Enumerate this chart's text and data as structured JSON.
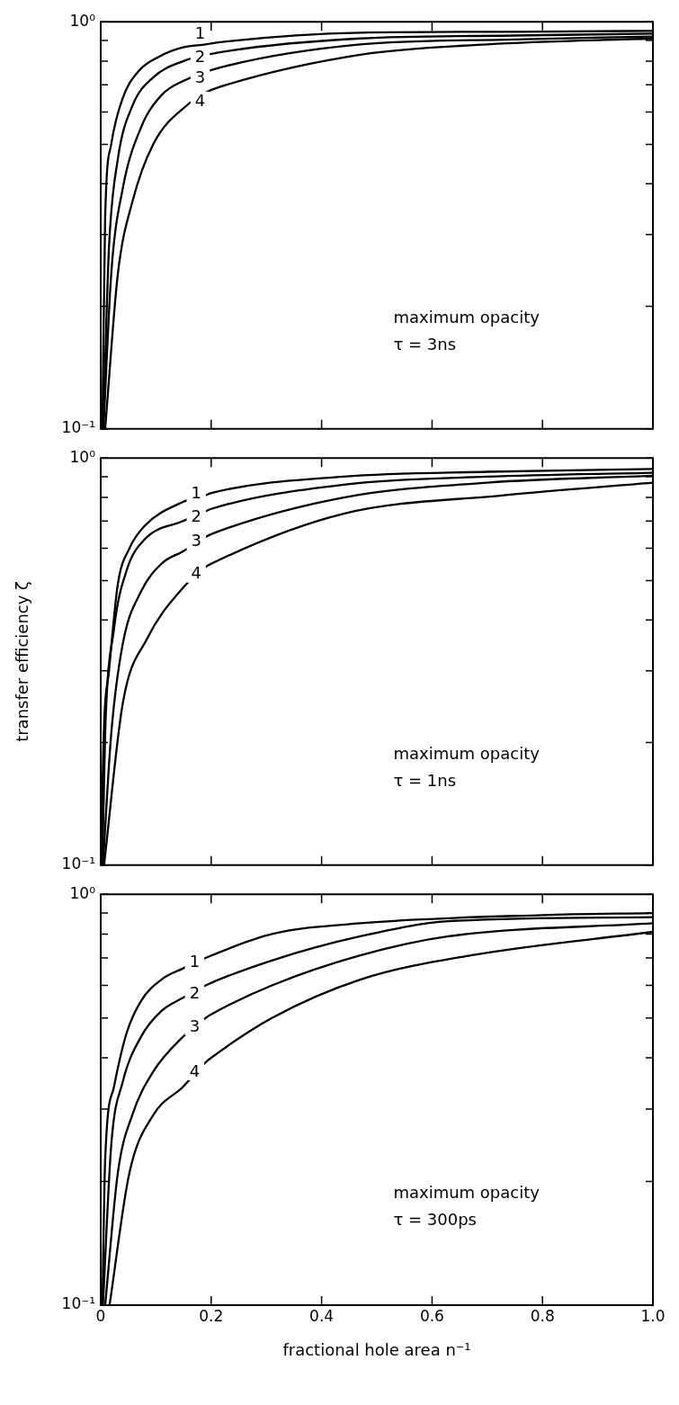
{
  "chart_data": [
    {
      "type": "line",
      "log": "y",
      "xlim": [
        0,
        1
      ],
      "ylim": [
        0.1,
        1
      ],
      "xticks": [
        0.2,
        0.4,
        0.6,
        0.8
      ],
      "yticks": [
        {
          "value": 0.1,
          "label": "10⁻¹"
        },
        {
          "value": 0.2,
          "label": null
        },
        {
          "value": 0.3,
          "label": null
        },
        {
          "value": 0.4,
          "label": null
        },
        {
          "value": 0.5,
          "label": null
        },
        {
          "value": 0.6,
          "label": null
        },
        {
          "value": 0.7,
          "label": null
        },
        {
          "value": 0.8,
          "label": null
        },
        {
          "value": 0.9,
          "label": null
        },
        {
          "value": 1,
          "label": "10⁰"
        }
      ],
      "tick_labels": "y",
      "grid": false,
      "marker": "none",
      "line_style": "solid",
      "annotations": [
        "maximum opacity",
        "τ = 3ns",
        {
          "text": "1",
          "x": 0.18,
          "y": 0.935
        },
        {
          "text": "2",
          "x": 0.18,
          "y": 0.82
        },
        {
          "text": "3",
          "x": 0.18,
          "y": 0.73
        },
        {
          "text": "4",
          "x": 0.18,
          "y": 0.64
        }
      ],
      "series": [
        {
          "color": "#000000",
          "x": [
            0.003,
            0.008,
            0.019,
            0.04,
            0.068,
            0.105,
            0.149,
            0.19,
            0.213,
            0.47,
            0.75,
            1
          ],
          "values": [
            0.1,
            0.33,
            0.5,
            0.65,
            0.755,
            0.82,
            0.865,
            0.88,
            0.89,
            0.94,
            0.945,
            0.95
          ]
        },
        {
          "color": "#000000",
          "x": [
            0.004,
            0.006,
            0.015,
            0.031,
            0.057,
            0.095,
            0.149,
            0.213,
            0.47,
            0.75,
            1
          ],
          "values": [
            0.1,
            0.12,
            0.28,
            0.46,
            0.62,
            0.73,
            0.8,
            0.84,
            0.91,
            0.925,
            0.935
          ]
        },
        {
          "color": "#000000",
          "x": [
            0.005,
            0.019,
            0.04,
            0.073,
            0.11,
            0.154,
            0.213,
            0.47,
            0.75,
            1
          ],
          "values": [
            0.1,
            0.24,
            0.39,
            0.55,
            0.66,
            0.72,
            0.77,
            0.88,
            0.905,
            0.92
          ]
        },
        {
          "color": "#000000",
          "x": [
            0.008,
            0.031,
            0.057,
            0.095,
            0.16,
            0.19,
            0.213,
            0.47,
            0.7,
            1
          ],
          "values": [
            0.1,
            0.24,
            0.36,
            0.5,
            0.63,
            0.67,
            0.69,
            0.83,
            0.88,
            0.91
          ]
        }
      ]
    },
    {
      "type": "line",
      "log": "y",
      "xlim": [
        0,
        1
      ],
      "ylim": [
        0.1,
        1
      ],
      "xticks": [
        0.2,
        0.4,
        0.6,
        0.8
      ],
      "yticks": [
        {
          "value": 0.1,
          "label": "10⁻¹"
        },
        {
          "value": 0.2,
          "label": null
        },
        {
          "value": 0.3,
          "label": null
        },
        {
          "value": 0.4,
          "label": null
        },
        {
          "value": 0.5,
          "label": null
        },
        {
          "value": 0.6,
          "label": null
        },
        {
          "value": 0.7,
          "label": null
        },
        {
          "value": 0.8,
          "label": null
        },
        {
          "value": 0.9,
          "label": null
        },
        {
          "value": 1,
          "label": "10⁰"
        }
      ],
      "tick_labels": "y",
      "grid": false,
      "marker": "none",
      "line_style": "solid",
      "ylabel": "transfer efficiency ζ",
      "annotations": [
        "maximum opacity",
        "τ = 1ns",
        {
          "text": "1",
          "x": 0.173,
          "y": 0.818
        },
        {
          "text": "2",
          "x": 0.173,
          "y": 0.718
        },
        {
          "text": "3",
          "x": 0.173,
          "y": 0.627
        },
        {
          "text": "4",
          "x": 0.173,
          "y": 0.52
        }
      ],
      "series": [
        {
          "color": "#000000",
          "x": [
            0.002,
            0.003,
            0.015,
            0.031,
            0.052,
            0.079,
            0.149,
            0.19,
            0.2,
            0.44,
            0.7,
            1
          ],
          "values": [
            0.1,
            0.15,
            0.3,
            0.49,
            0.6,
            0.68,
            0.78,
            0.81,
            0.82,
            0.9,
            0.925,
            0.94
          ]
        },
        {
          "color": "#000000",
          "x": [
            0.003,
            0.008,
            0.024,
            0.047,
            0.079,
            0.149,
            0.19,
            0.2,
            0.44,
            0.7,
            1
          ],
          "values": [
            0.1,
            0.21,
            0.38,
            0.53,
            0.63,
            0.7,
            0.74,
            0.75,
            0.86,
            0.9,
            0.92
          ]
        },
        {
          "color": "#000000",
          "x": [
            0.004,
            0.019,
            0.04,
            0.073,
            0.11,
            0.149,
            0.19,
            0.2,
            0.44,
            0.7,
            1
          ],
          "values": [
            0.1,
            0.21,
            0.35,
            0.47,
            0.55,
            0.59,
            0.64,
            0.65,
            0.8,
            0.87,
            0.905
          ]
        },
        {
          "color": "#000000",
          "x": [
            0.006,
            0.04,
            0.084,
            0.149,
            0.19,
            0.2,
            0.44,
            0.73,
            1
          ],
          "values": [
            0.1,
            0.25,
            0.36,
            0.48,
            0.54,
            0.55,
            0.73,
            0.81,
            0.87
          ]
        }
      ]
    },
    {
      "type": "line",
      "log": "y",
      "xlim": [
        0,
        1
      ],
      "ylim": [
        0.1,
        1
      ],
      "xticks": [
        0,
        0.2,
        0.4,
        0.6,
        0.8,
        {
          "value": 1,
          "label": "1.0"
        }
      ],
      "yticks": [
        {
          "value": 0.1,
          "label": "10⁻¹"
        },
        {
          "value": 0.2,
          "label": null
        },
        {
          "value": 0.3,
          "label": null
        },
        {
          "value": 0.4,
          "label": null
        },
        {
          "value": 0.5,
          "label": null
        },
        {
          "value": 0.6,
          "label": null
        },
        {
          "value": 0.7,
          "label": null
        },
        {
          "value": 0.8,
          "label": null
        },
        {
          "value": 0.9,
          "label": null
        },
        {
          "value": 1,
          "label": "10⁰"
        }
      ],
      "grid": false,
      "marker": "none",
      "line_style": "solid",
      "xlabel": "fractional hole area n⁻¹",
      "annotations": [
        "maximum opacity",
        "τ = 300ps",
        {
          "text": "1",
          "x": 0.17,
          "y": 0.686
        },
        {
          "text": "2",
          "x": 0.17,
          "y": 0.575
        },
        {
          "text": "3",
          "x": 0.17,
          "y": 0.477
        },
        {
          "text": "4",
          "x": 0.17,
          "y": 0.371
        }
      ],
      "series": [
        {
          "color": "#000000",
          "x": [
            0.003,
            0.008,
            0.024,
            0.047,
            0.073,
            0.11,
            0.149,
            0.19,
            0.31,
            0.47,
            0.8,
            1
          ],
          "values": [
            0.1,
            0.225,
            0.34,
            0.46,
            0.55,
            0.62,
            0.66,
            0.7,
            0.8,
            0.85,
            0.89,
            0.9
          ]
        },
        {
          "color": "#000000",
          "x": [
            0.004,
            0.019,
            0.04,
            0.073,
            0.11,
            0.149,
            0.19,
            0.31,
            0.47,
            0.63,
            1
          ],
          "values": [
            0.1,
            0.245,
            0.35,
            0.45,
            0.52,
            0.56,
            0.6,
            0.69,
            0.79,
            0.86,
            0.88
          ]
        },
        {
          "color": "#000000",
          "x": [
            0.008,
            0.031,
            0.057,
            0.095,
            0.149,
            0.19,
            0.2,
            0.31,
            0.47,
            0.63,
            1
          ],
          "values": [
            0.1,
            0.21,
            0.29,
            0.37,
            0.45,
            0.5,
            0.51,
            0.6,
            0.71,
            0.79,
            0.85
          ]
        },
        {
          "color": "#000000",
          "x": [
            0.016,
            0.052,
            0.095,
            0.149,
            0.19,
            0.2,
            0.31,
            0.47,
            0.67,
            1
          ],
          "values": [
            0.1,
            0.21,
            0.29,
            0.34,
            0.39,
            0.4,
            0.5,
            0.62,
            0.71,
            0.81
          ]
        }
      ]
    }
  ]
}
